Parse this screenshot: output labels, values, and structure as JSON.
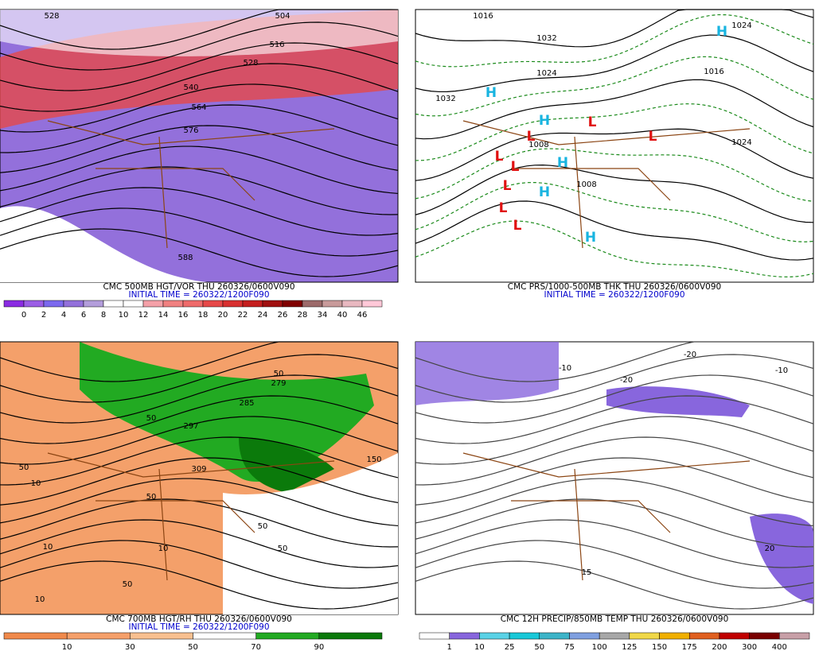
{
  "panels": [
    {
      "title": "CMC 500MB HGT/VOR THU 260326/0600V090",
      "initial_time": "INITIAL TIME = 260322/1200F090",
      "labels": [
        "528",
        "504",
        "516",
        "528",
        "540",
        "564",
        "576",
        "588"
      ],
      "colorbar": {
        "labels": [
          0,
          2,
          4,
          6,
          8,
          10,
          12,
          14,
          16,
          18,
          20,
          22,
          24,
          26,
          28,
          34,
          40,
          46
        ],
        "colors": [
          "#8a2be2",
          "#9b5de5",
          "#7b68ee",
          "#9370db",
          "#b39ddb",
          "#ffffff",
          "#ffffff",
          "#f4a0a8",
          "#f08080",
          "#ee6a6a",
          "#e64848",
          "#d83030",
          "#c41e1e",
          "#a01010",
          "#800000",
          "#9c6a6a",
          "#c89a9a",
          "#e8b8c0",
          "#ffc8d8"
        ]
      }
    },
    {
      "title": "CMC PRS/1000-500MB THK THU 260326/0600V090",
      "initial_time": "INITIAL TIME = 260322/1200F090",
      "labels": [
        "1016",
        "1032",
        "1024",
        "1032",
        "1016",
        "1024",
        "1024",
        "1008",
        "1008",
        "H",
        "H",
        "H",
        "H",
        "H",
        "H",
        "L",
        "L",
        "L",
        "L",
        "L",
        "L",
        "L",
        "L"
      ]
    },
    {
      "title": "CMC 700MB HGT/RH THU 260326/0600V090",
      "initial_time": "INITIAL TIME = 260322/1200F090",
      "labels": [
        "50",
        "279",
        "285",
        "297",
        "50",
        "309",
        "50",
        "10",
        "50",
        "10",
        "10",
        "50",
        "10",
        "150",
        "50",
        "50"
      ],
      "colorbar": {
        "labels": [
          10,
          30,
          50,
          70,
          90
        ],
        "colors": [
          "#f08a4b",
          "#f5a06a",
          "#f8c090",
          "#ffffff",
          "#22aa22",
          "#0b7a0b"
        ]
      }
    },
    {
      "title": "CMC 12H PRECIP/850MB TEMP THU 260326/0600V090",
      "labels": [
        "-20",
        "-10",
        "-20",
        "-10",
        "20",
        "15"
      ],
      "colorbar": {
        "labels": [
          1,
          10,
          25,
          50,
          75,
          100,
          125,
          150,
          175,
          200,
          300,
          400
        ],
        "colors": [
          "#ffffff",
          "#8866dd",
          "#5ad2e6",
          "#18c8d8",
          "#3cb4c8",
          "#80a0e0",
          "#a8a8a8",
          "#f0d848",
          "#f0b000",
          "#e06020",
          "#c00000",
          "#7a0000",
          "#c8a0a8"
        ]
      }
    }
  ]
}
